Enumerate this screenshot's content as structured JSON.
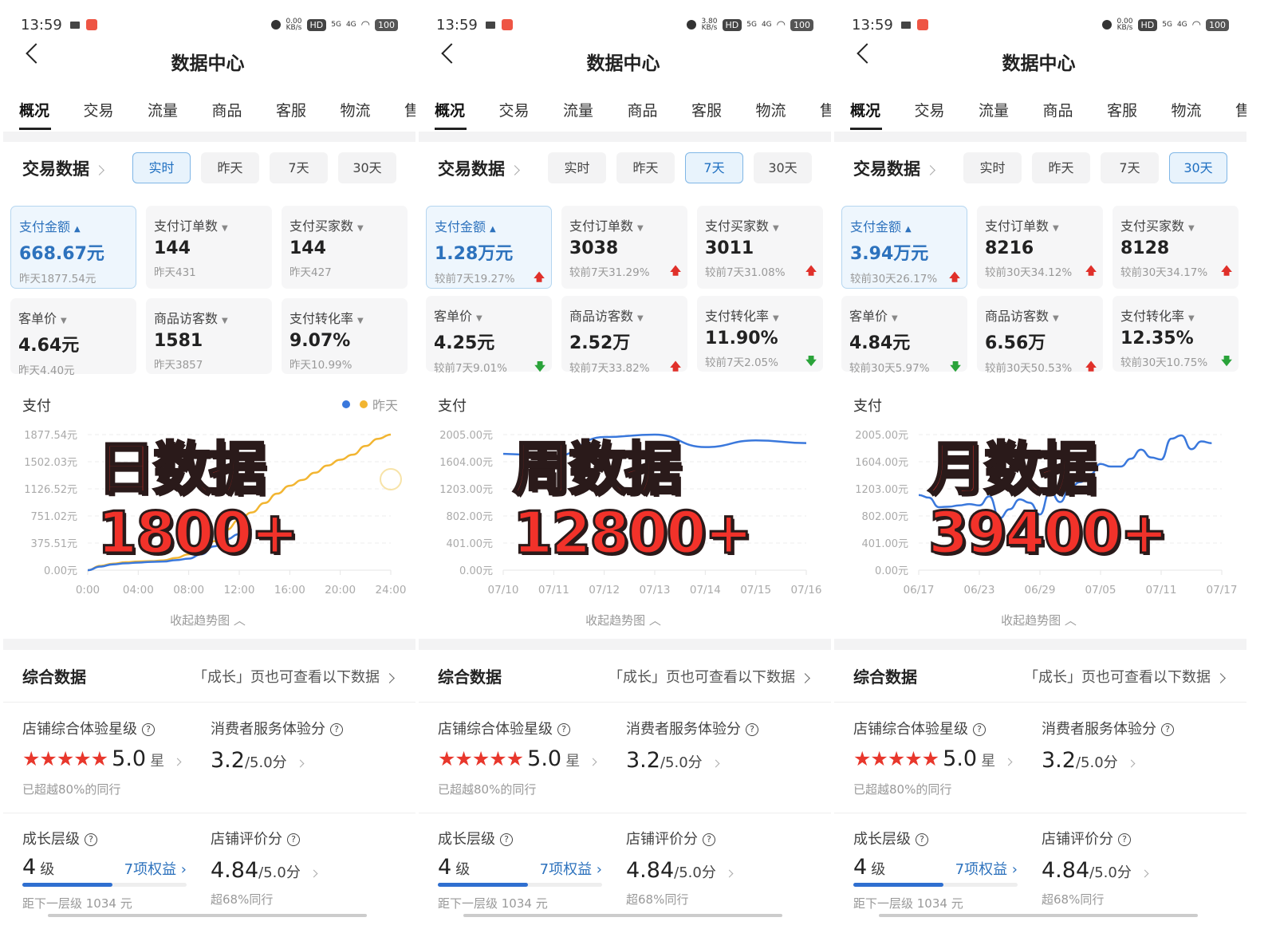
{
  "colors": {
    "accent": "#2d72bd",
    "today_line": "#3a78dc",
    "yesterday_line": "#f2b531",
    "up": "#e0302a",
    "down": "#2aa33a",
    "overlay_text": "#f2322a"
  },
  "tabs": [
    "概况",
    "交易",
    "流量",
    "商品",
    "客服",
    "物流",
    "售"
  ],
  "header_title": "数据中心",
  "section_title": "交易数据",
  "period_pills": [
    "实时",
    "昨天",
    "7天",
    "30天"
  ],
  "chart_title_prefix": "支付",
  "collapse_label": "收起趋势图",
  "summary": {
    "title": "综合数据",
    "link": "「成长」页也可查看以下数据",
    "star_label": "店铺综合体验星级",
    "star_value": "5.0",
    "star_unit": "星",
    "star_count": 5,
    "star_note": "已超越80%的同行",
    "service_label": "消费者服务体验分",
    "service_value": "3.2",
    "service_total": "/5.0分",
    "level_label": "成长层级",
    "level_value": "4",
    "level_unit": "级",
    "level_benefits": "7项权益",
    "level_progress": 0.55,
    "level_note": "距下一层级 1034 元",
    "rating_label": "店铺评价分",
    "rating_value": "4.84",
    "rating_total": "/5.0分",
    "rating_note": "超68%同行"
  },
  "panels": [
    {
      "status": {
        "time": "13:59",
        "net_speed": "0.00",
        "net_unit": "KB/s",
        "battery": "100",
        "signal": [
          "5G",
          "4G"
        ]
      },
      "active_pill": 0,
      "overlay": "日数据1800+",
      "legend": [
        {
          "label": "",
          "color": "#3a78dc"
        },
        {
          "label": "昨天",
          "color": "#f2b531"
        }
      ],
      "cards": [
        {
          "label": "支付金额",
          "value": "668.67元",
          "sub": "昨天1877.54元",
          "active": true
        },
        {
          "label": "支付订单数",
          "value": "144",
          "sub": "昨天431"
        },
        {
          "label": "支付买家数",
          "value": "144",
          "sub": "昨天427"
        },
        {
          "label": "客单价",
          "value": "4.64元",
          "sub": "昨天4.40元"
        },
        {
          "label": "商品访客数",
          "value": "1581",
          "sub": "昨天3857"
        },
        {
          "label": "支付转化率",
          "value": "9.07%",
          "sub": "昨天10.99%"
        }
      ],
      "chart_data": {
        "type": "line",
        "y_ticks": [
          "0.00元",
          "375.51元",
          "751.02元",
          "1126.52元",
          "1502.03元",
          "1877.54元"
        ],
        "ylim": [
          0,
          1877.54
        ],
        "x_ticks": [
          "0:00",
          "04:00",
          "08:00",
          "12:00",
          "16:00",
          "20:00",
          "24:00"
        ],
        "xlim": [
          0,
          24
        ],
        "grid": true,
        "series": [
          {
            "name": "昨天",
            "color": "#f2b531",
            "x": [
              0,
              1,
              2,
              3,
              4,
              5,
              6,
              7,
              8,
              9,
              10,
              11,
              12,
              13,
              14,
              15,
              16,
              17,
              18,
              19,
              20,
              21,
              22,
              23,
              24
            ],
            "values": [
              0,
              60,
              90,
              110,
              120,
              125,
              135,
              170,
              220,
              280,
              400,
              560,
              700,
              800,
              930,
              1060,
              1170,
              1250,
              1350,
              1450,
              1530,
              1600,
              1720,
              1820,
              1877.54
            ]
          },
          {
            "color": "#3a78dc",
            "x": [
              0,
              1,
              2,
              3,
              4,
              5,
              6,
              7,
              8,
              9,
              10,
              11,
              12,
              13
            ],
            "values": [
              0,
              50,
              80,
              95,
              105,
              115,
              120,
              140,
              160,
              220,
              330,
              430,
              500,
              560
            ]
          }
        ]
      }
    },
    {
      "status": {
        "time": "13:59",
        "net_speed": "3.80",
        "net_unit": "KB/s",
        "battery": "100",
        "signal": [
          "5G",
          "4G"
        ]
      },
      "active_pill": 2,
      "overlay": "周数据12800+",
      "legend": [],
      "cards": [
        {
          "label": "支付金额",
          "value": "1.28万元",
          "sub": "较前7天19.27%",
          "trend": "up",
          "active": true
        },
        {
          "label": "支付订单数",
          "value": "3038",
          "sub": "较前7天31.29%",
          "trend": "up"
        },
        {
          "label": "支付买家数",
          "value": "3011",
          "sub": "较前7天31.08%",
          "trend": "up"
        },
        {
          "label": "客单价",
          "value": "4.25元",
          "sub": "较前7天9.01%",
          "trend": "down"
        },
        {
          "label": "商品访客数",
          "value": "2.52万",
          "sub": "较前7天33.82%",
          "trend": "up"
        },
        {
          "label": "支付转化率",
          "value": "11.90%",
          "sub": "较前7天2.05%",
          "trend": "down"
        }
      ],
      "chart_data": {
        "type": "line",
        "y_ticks": [
          "0.00元",
          "401.00元",
          "802.00元",
          "1203.00元",
          "1604.00元",
          "2005.00元"
        ],
        "ylim": [
          0,
          2005
        ],
        "x_ticks": [
          "07/10",
          "07/11",
          "07/12",
          "07/13",
          "07/14",
          "07/15",
          "07/16"
        ],
        "xlim": [
          0,
          6
        ],
        "grid": true,
        "series": [
          {
            "color": "#3a78dc",
            "x": [
              0,
              1,
              2,
              3,
              4,
              5,
              6
            ],
            "values": [
              1720,
              1680,
              1970,
              2005,
              1820,
              1920,
              1880
            ]
          }
        ]
      }
    },
    {
      "status": {
        "time": "13:59",
        "net_speed": "0.00",
        "net_unit": "KB/s",
        "battery": "100",
        "signal": [
          "5G",
          "4G"
        ]
      },
      "active_pill": 3,
      "overlay": "月数据39400+",
      "legend": [],
      "cards": [
        {
          "label": "支付金额",
          "value": "3.94万元",
          "sub": "较前30天26.17%",
          "trend": "up",
          "active": true
        },
        {
          "label": "支付订单数",
          "value": "8216",
          "sub": "较前30天34.12%",
          "trend": "up"
        },
        {
          "label": "支付买家数",
          "value": "8128",
          "sub": "较前30天34.17%",
          "trend": "up"
        },
        {
          "label": "客单价",
          "value": "4.84元",
          "sub": "较前30天5.97%",
          "trend": "down"
        },
        {
          "label": "商品访客数",
          "value": "6.56万",
          "sub": "较前30天50.53%",
          "trend": "up"
        },
        {
          "label": "支付转化率",
          "value": "12.35%",
          "sub": "较前30天10.75%",
          "trend": "down"
        }
      ],
      "chart_data": {
        "type": "line",
        "y_ticks": [
          "0.00元",
          "401.00元",
          "802.00元",
          "1203.00元",
          "1604.00元",
          "2005.00元"
        ],
        "ylim": [
          0,
          2005
        ],
        "x_ticks": [
          "06/17",
          "06/23",
          "06/29",
          "07/05",
          "07/11",
          "07/17"
        ],
        "xlim": [
          0,
          30
        ],
        "grid": true,
        "series": [
          {
            "color": "#3a78dc",
            "x": [
              0,
              1,
              2,
              3,
              4,
              5,
              6,
              7,
              8,
              9,
              10,
              11,
              12,
              13,
              14,
              15,
              16,
              17,
              18,
              19,
              20,
              21,
              22,
              23,
              24,
              25,
              26,
              27,
              28,
              29
            ],
            "values": [
              1112,
              1073,
              932,
              939,
              958,
              978,
              958,
              1093,
              767,
              901,
              1047,
              997,
              824,
              1169,
              1008,
              1227,
              1303,
              1418,
              1572,
              1533,
              1533,
              1648,
              1783,
              1668,
              1637,
              1944,
              1993,
              1790,
              1905,
              1878
            ]
          }
        ]
      }
    }
  ]
}
